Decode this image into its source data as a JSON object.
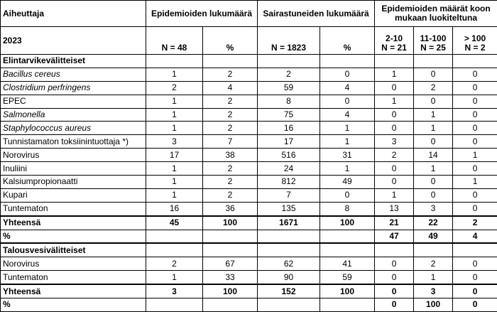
{
  "header": {
    "cause": "Aiheuttaja",
    "epidemics": "Epidemioiden lukumäärä",
    "patients": "Sairastuneiden lukumäärä",
    "size_classes": "Epidemioiden määrät koon mukaan luokiteltuna",
    "year": "2023",
    "subheaders": [
      "N = 48",
      "%",
      "N = 1823",
      "%"
    ],
    "size_columns": [
      {
        "range": "2-10",
        "n": "N = 21"
      },
      {
        "range": "11-100",
        "n": "N = 25"
      },
      {
        "range": "> 100",
        "n": "N = 2"
      }
    ]
  },
  "sections": [
    {
      "title": "Elintarvikevälitteiset",
      "rows": [
        {
          "label": "Bacillus cereus",
          "italic": true,
          "values": [
            1,
            2,
            2,
            0,
            1,
            0,
            0
          ]
        },
        {
          "label": "Clostridium perfringens",
          "italic": true,
          "values": [
            2,
            4,
            59,
            4,
            0,
            2,
            0
          ]
        },
        {
          "label": "EPEC",
          "values": [
            1,
            2,
            8,
            0,
            1,
            0,
            0
          ]
        },
        {
          "label": "Salmonella",
          "italic": true,
          "values": [
            1,
            2,
            75,
            4,
            0,
            1,
            0
          ]
        },
        {
          "label": "Staphylococcus aureus",
          "italic": true,
          "values": [
            1,
            2,
            16,
            1,
            0,
            1,
            0
          ]
        },
        {
          "label": "Tunnistamaton toksiinintuottaja *)",
          "values": [
            3,
            7,
            17,
            1,
            3,
            0,
            0
          ]
        },
        {
          "label": "Norovirus",
          "values": [
            17,
            38,
            516,
            31,
            2,
            14,
            1
          ]
        },
        {
          "label": "Inuliini",
          "values": [
            1,
            2,
            24,
            1,
            0,
            1,
            0
          ]
        },
        {
          "label": "Kalsiumpropionaatti",
          "values": [
            1,
            2,
            812,
            49,
            0,
            0,
            1
          ]
        },
        {
          "label": "Kupari",
          "values": [
            1,
            2,
            7,
            0,
            1,
            0,
            0
          ]
        },
        {
          "label": "Tuntematon",
          "values": [
            16,
            36,
            135,
            8,
            13,
            3,
            0
          ]
        },
        {
          "label": "Yhteensä",
          "bold": true,
          "values": [
            45,
            100,
            1671,
            100,
            21,
            22,
            2
          ]
        },
        {
          "label": "%",
          "bold": true,
          "values": [
            null,
            null,
            null,
            null,
            47,
            49,
            4
          ]
        }
      ]
    },
    {
      "title": "Talousvesivälitteiset",
      "rows": [
        {
          "label": "Norovirus",
          "values": [
            2,
            67,
            62,
            41,
            0,
            2,
            0
          ]
        },
        {
          "label": "Tuntematon",
          "values": [
            1,
            33,
            90,
            59,
            0,
            1,
            0
          ]
        },
        {
          "label": "Yhteensä",
          "bold": true,
          "values": [
            3,
            100,
            152,
            100,
            0,
            3,
            0
          ]
        },
        {
          "label": "%",
          "bold": true,
          "values": [
            null,
            null,
            null,
            null,
            0,
            100,
            0
          ]
        }
      ]
    }
  ]
}
